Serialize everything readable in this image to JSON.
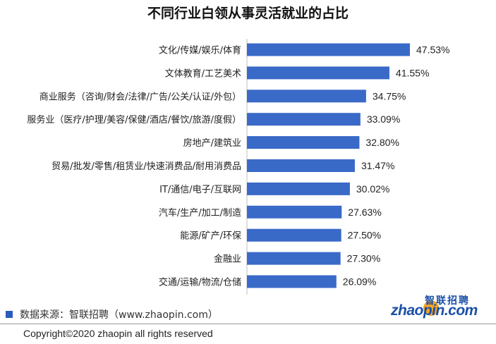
{
  "colors": {
    "bar": "#3a6ac8",
    "source_square": "#2a5bbd",
    "logo": "#1b4fa8",
    "logo_accent": "#f5a623"
  },
  "chart_data": {
    "type": "bar",
    "orientation": "horizontal",
    "title": "不同行业白领从事灵活就业的占比",
    "categories": [
      "文化/传媒/娱乐/体育",
      "文体教育/工艺美术",
      "商业服务（咨询/财会/法律/广告/公关/认证/外包）",
      "服务业（医疗/护理/美容/保健/酒店/餐饮/旅游/度假）",
      "房地产/建筑业",
      "贸易/批发/零售/租赁业/快速消费品/耐用消费品",
      "IT/通信/电子/互联网",
      "汽车/生产/加工/制造",
      "能源/矿产/环保",
      "金融业",
      "交通/运输/物流/仓储"
    ],
    "values": [
      47.53,
      41.55,
      34.75,
      33.09,
      32.8,
      31.47,
      30.02,
      27.63,
      27.5,
      27.3,
      26.09
    ],
    "value_labels": [
      "47.53%",
      "41.55%",
      "34.75%",
      "33.09%",
      "32.80%",
      "31.47%",
      "30.02%",
      "27.63%",
      "27.50%",
      "27.30%",
      "26.09%"
    ],
    "xlim": [
      0,
      47.53
    ],
    "grid": false
  },
  "source": "数据来源：智联招聘（www.zhaopin.com）",
  "copyright": "Copyright©2020 zhaopin all rights reserved",
  "logo": {
    "cn": "智联招聘",
    "en": "zhaopin.com"
  }
}
